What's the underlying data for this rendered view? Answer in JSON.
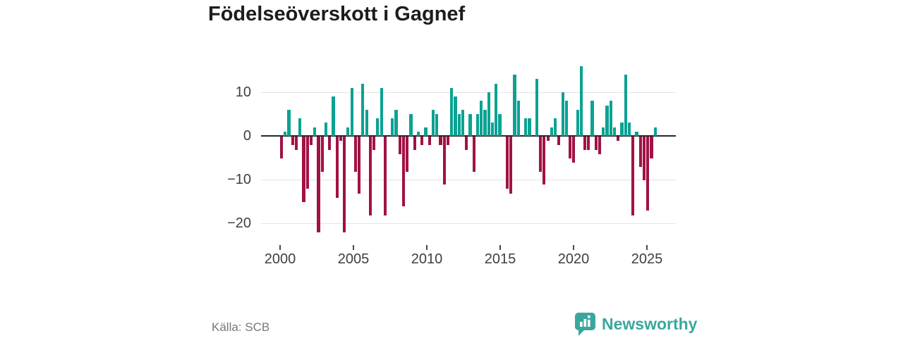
{
  "title": "Födelseöverskott i Gagnef",
  "source": "Källa: SCB",
  "branding": {
    "logo_text": "Newsworthy",
    "logo_icon": "bar-chart-speech-bubble",
    "logo_color": "#3aa79e"
  },
  "chart_data": {
    "type": "bar",
    "title": "Födelseöverskott i Gagnef",
    "frequency": "quarterly",
    "start_period": "2000-Q1",
    "end_period": "2025-Q2",
    "values": [
      -5,
      1,
      6,
      -2,
      -3,
      4,
      -15,
      -12,
      -2,
      2,
      -22,
      -8,
      3,
      -3,
      9,
      -14,
      -1,
      -22,
      2,
      11,
      -8,
      -13,
      12,
      6,
      -18,
      -3,
      4,
      11,
      -18,
      0,
      4,
      6,
      -4,
      -16,
      -8,
      5,
      -3,
      1,
      -2,
      2,
      -2,
      6,
      5,
      -2,
      -11,
      -2,
      11,
      9,
      5,
      6,
      -3,
      5,
      -8,
      5,
      8,
      6,
      10,
      3,
      12,
      5,
      0,
      -12,
      -13,
      14,
      8,
      0,
      4,
      4,
      0,
      13,
      -8,
      -11,
      -1,
      2,
      4,
      -2,
      10,
      8,
      -5,
      -6,
      6,
      16,
      -3,
      -3,
      8,
      -3,
      -4,
      2,
      7,
      8,
      2,
      -1,
      3,
      14,
      3,
      -18,
      1,
      -7,
      -10,
      -17,
      -5,
      2
    ],
    "x_tick_labels": [
      "2000",
      "2005",
      "2010",
      "2015",
      "2020",
      "2025"
    ],
    "y_ticks": [
      10,
      0,
      -10,
      -20
    ],
    "y_tick_labels": [
      "10",
      "0",
      "−10",
      "−20"
    ],
    "ylim": [
      -23,
      17
    ],
    "grid": "horizontal",
    "legend": "none",
    "colors": {
      "positive": "#0ba293",
      "negative": "#a21145",
      "gridline": "#e3e3e3",
      "baseline": "#25292c"
    }
  }
}
